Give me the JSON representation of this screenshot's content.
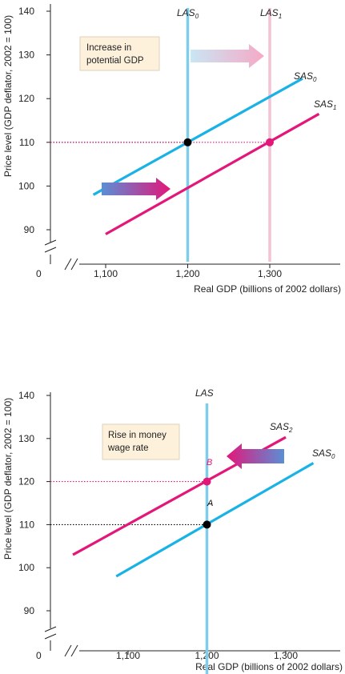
{
  "colors": {
    "las": "#7fcdea",
    "las_shifted": "#f4c2d4",
    "sas0": "#19b2e6",
    "sas_shifted": "#e3177a",
    "highlight_text": "#e3177a",
    "axis": "#222222",
    "box_fill": "#fdf1dc"
  },
  "chart_data": [
    {
      "type": "line",
      "xlabel": "Real GDP (billions of 2002 dollars)",
      "ylabel": "Price level (GDP deflator, 2002 = 100)",
      "origin_label": "0",
      "y_ticks": [
        90,
        100,
        110,
        120,
        130,
        140
      ],
      "x_ticks": [
        1100,
        1200,
        1300
      ],
      "x_tick_labels": [
        "1,100",
        "1,200",
        "1,300"
      ],
      "y_tick_labels": [
        "90",
        "100",
        "110",
        "120",
        "130",
        "140"
      ],
      "annotation": "Increase in potential GDP",
      "annotation_lines": [
        "Increase in",
        "potential GDP"
      ],
      "series": [
        {
          "name": "LAS0",
          "label_main": "LAS",
          "label_sub": "0",
          "kind": "vertical",
          "x": 1200,
          "color": "las"
        },
        {
          "name": "LAS1",
          "label_main": "LAS",
          "label_sub": "1",
          "kind": "vertical",
          "x": 1300,
          "color": "las_shifted"
        },
        {
          "name": "SAS0",
          "label_main": "SAS",
          "label_sub": "0",
          "kind": "line",
          "x": [
            1085,
            1340
          ],
          "y": [
            98,
            124.6
          ],
          "color": "sas0"
        },
        {
          "name": "SAS1",
          "label_main": "SAS",
          "label_sub": "1",
          "kind": "line",
          "x": [
            1100,
            1360
          ],
          "y": [
            89,
            116.5
          ],
          "color": "sas_shifted"
        }
      ],
      "equilibria": [
        {
          "x": 1200,
          "y": 110,
          "color": "#000000"
        },
        {
          "x": 1300,
          "y": 110,
          "color": "#e3177a"
        }
      ],
      "highlight_ticks": {
        "x": [
          1300
        ],
        "y": [
          110
        ]
      }
    },
    {
      "type": "line",
      "xlabel": "Real GDP (billions of 2002 dollars)",
      "ylabel": "Price level (GDP deflator, 2002 = 100)",
      "origin_label": "0",
      "y_ticks": [
        90,
        100,
        110,
        120,
        130,
        140
      ],
      "x_ticks": [
        1100,
        1200,
        1300
      ],
      "x_tick_labels": [
        "1,100",
        "1,200",
        "1,300"
      ],
      "y_tick_labels": [
        "90",
        "100",
        "110",
        "120",
        "130",
        "140"
      ],
      "annotation": "Rise in money wage rate",
      "annotation_lines": [
        "Rise in money",
        "wage rate"
      ],
      "series": [
        {
          "name": "LAS",
          "label_main": "LAS",
          "label_sub": "",
          "kind": "vertical",
          "x": 1200,
          "color": "las"
        },
        {
          "name": "SAS2",
          "label_main": "SAS",
          "label_sub": "2",
          "kind": "line",
          "x": [
            1030,
            1300
          ],
          "y": [
            103,
            130.3
          ],
          "color": "sas_shifted"
        },
        {
          "name": "SAS0",
          "label_main": "SAS",
          "label_sub": "0",
          "kind": "line",
          "x": [
            1085,
            1335
          ],
          "y": [
            98,
            124.3
          ],
          "color": "sas0"
        }
      ],
      "equilibria": [
        {
          "x": 1200,
          "y": 110,
          "color": "#000000",
          "label": "A"
        },
        {
          "x": 1200,
          "y": 120,
          "color": "#e3177a",
          "label": "B"
        }
      ],
      "highlight_ticks": {
        "x": [
          1200
        ],
        "y": [
          120
        ]
      }
    }
  ]
}
